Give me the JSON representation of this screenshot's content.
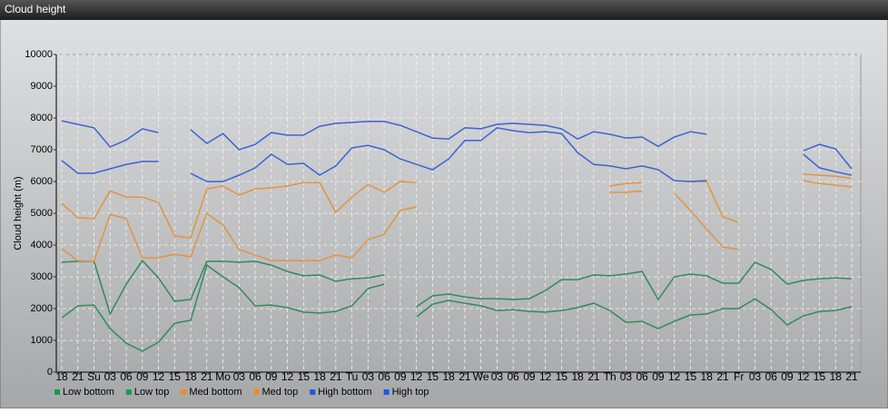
{
  "chart_data": {
    "type": "line",
    "title": "Cloud height",
    "ylabel": "Cloud height (m)",
    "categories": [
      "18",
      "21",
      "Su",
      "03",
      "06",
      "09",
      "12",
      "15",
      "18",
      "21",
      "Mo",
      "03",
      "06",
      "09",
      "12",
      "15",
      "18",
      "21",
      "Tu",
      "03",
      "06",
      "09",
      "12",
      "15",
      "18",
      "21",
      "We",
      "03",
      "06",
      "09",
      "12",
      "15",
      "18",
      "21",
      "Th",
      "03",
      "06",
      "09",
      "12",
      "15",
      "18",
      "21",
      "Fr",
      "03",
      "06",
      "09",
      "12",
      "15",
      "18",
      "21"
    ],
    "ylim": [
      0,
      10000
    ],
    "yticks": [
      0,
      1000,
      2000,
      3000,
      4000,
      5000,
      6000,
      7000,
      8000,
      9000,
      10000
    ],
    "grid": true,
    "legend": "bottom-left",
    "series": [
      {
        "name": "Low bottom",
        "color": "#2f8c5a",
        "legend_color": "#1a9a50",
        "values": [
          1710,
          2090,
          2110,
          1370,
          910,
          660,
          940,
          1540,
          1630,
          3370,
          3000,
          2660,
          2090,
          2110,
          2030,
          1890,
          1860,
          1910,
          2090,
          2630,
          2770,
          null,
          1740,
          2140,
          2260,
          2170,
          2090,
          1940,
          1970,
          1910,
          1890,
          1940,
          2030,
          2170,
          1940,
          1570,
          1600,
          1370,
          1600,
          1800,
          1830,
          2000,
          2000,
          2310,
          1970,
          1490,
          1770,
          1910,
          1940,
          2060
        ]
      },
      {
        "name": "Low top",
        "color": "#2f8c5a",
        "legend_color": "#1a9a50",
        "values": [
          3460,
          3490,
          3490,
          1830,
          2770,
          3510,
          2970,
          2230,
          2290,
          3490,
          3490,
          3460,
          3490,
          3370,
          3170,
          3030,
          3060,
          2860,
          2940,
          2970,
          3060,
          null,
          2060,
          2400,
          2460,
          2370,
          2310,
          2310,
          2290,
          2310,
          2570,
          2910,
          2910,
          3060,
          3030,
          3090,
          3170,
          2290,
          3000,
          3090,
          3030,
          2800,
          2800,
          3460,
          3230,
          2770,
          2890,
          2940,
          2970,
          2940
        ]
      },
      {
        "name": "Med bottom",
        "color": "#e2943e",
        "legend_color": "#f08a1c",
        "values": [
          3890,
          3510,
          3490,
          4970,
          4830,
          3600,
          3600,
          3710,
          3630,
          5000,
          4630,
          3860,
          3690,
          3510,
          3510,
          3510,
          3510,
          3690,
          3600,
          4170,
          4340,
          5090,
          5200,
          null,
          null,
          null,
          null,
          null,
          null,
          null,
          null,
          null,
          null,
          null,
          5660,
          5660,
          5710,
          null,
          5630,
          5090,
          4510,
          3940,
          3860,
          null,
          null,
          null,
          6030,
          5940,
          5890,
          5830
        ]
      },
      {
        "name": "Med top",
        "color": "#e2943e",
        "legend_color": "#f08a1c",
        "values": [
          5310,
          4860,
          4830,
          5710,
          5510,
          5510,
          5340,
          4290,
          4230,
          5770,
          5860,
          5570,
          5770,
          5800,
          5860,
          5970,
          5970,
          5030,
          5510,
          5910,
          5660,
          6000,
          5970,
          null,
          null,
          null,
          null,
          null,
          null,
          null,
          null,
          null,
          null,
          null,
          5860,
          5940,
          5970,
          null,
          null,
          6000,
          6000,
          4890,
          4710,
          null,
          null,
          null,
          6230,
          6200,
          6170,
          6100
        ]
      },
      {
        "name": "High bottom",
        "color": "#3b63d6",
        "legend_color": "#1f56e6",
        "values": [
          6660,
          6260,
          6260,
          6400,
          6540,
          6630,
          6630,
          null,
          6260,
          6000,
          6000,
          6200,
          6430,
          6860,
          6540,
          6570,
          6200,
          6490,
          7060,
          7140,
          7000,
          6710,
          6540,
          6370,
          6710,
          7290,
          7290,
          7690,
          7600,
          7540,
          7570,
          7510,
          6910,
          6540,
          6490,
          6400,
          6490,
          6370,
          6030,
          6000,
          6030,
          null,
          null,
          null,
          null,
          null,
          6860,
          6430,
          6310,
          6200
        ]
      },
      {
        "name": "High top",
        "color": "#3b63d6",
        "legend_color": "#1f56e6",
        "values": [
          7910,
          7800,
          7690,
          7090,
          7310,
          7660,
          7540,
          null,
          7630,
          7200,
          7510,
          7000,
          7170,
          7540,
          7460,
          7460,
          7740,
          7830,
          7860,
          7890,
          7890,
          7770,
          7570,
          7370,
          7340,
          7690,
          7660,
          7800,
          7830,
          7800,
          7770,
          7660,
          7340,
          7570,
          7490,
          7370,
          7400,
          7110,
          7400,
          7570,
          7490,
          null,
          null,
          null,
          null,
          null,
          6970,
          7170,
          7030,
          6400
        ]
      }
    ]
  }
}
